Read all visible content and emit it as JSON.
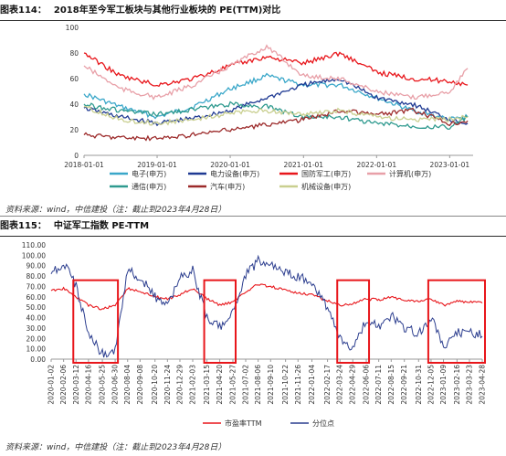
{
  "figure1": {
    "number": "图表114：",
    "title": "2018年至今军工板块与其他行业板块的 PE(TTM)对比",
    "source": "资料来源：wind，中信建投（注：截止到2023年4月28日）"
  },
  "figure2": {
    "number": "图表115：",
    "title": "中证军工指数 PE-TTM",
    "source": "资料来源：wind，中信建投（注：截止到2023年4月28日）"
  },
  "chart_data": [
    {
      "type": "line",
      "title": "2018年至今军工板块与其他行业板块的 PE(TTM)对比",
      "x_ticks": [
        "2018-01-01",
        "2019-01-01",
        "2020-01-01",
        "2021-01-01",
        "2022-01-01",
        "2023-01-01"
      ],
      "y_ticks": [
        0,
        20,
        40,
        60,
        80,
        100
      ],
      "ylim": [
        0,
        100
      ],
      "x_range": [
        "2018-01-01",
        "2023-04-28"
      ],
      "grid": false,
      "legend_position": "bottom",
      "series": [
        {
          "name": "电子(申万)",
          "color": "#3aa7c9",
          "x": [
            "2018-01",
            "2018-07",
            "2019-01",
            "2019-07",
            "2020-01",
            "2020-07",
            "2021-01",
            "2021-07",
            "2022-01",
            "2022-07",
            "2023-01",
            "2023-04"
          ],
          "values": [
            48,
            38,
            30,
            38,
            52,
            62,
            55,
            55,
            45,
            35,
            28,
            30
          ]
        },
        {
          "name": "电力设备(申万)",
          "color": "#1f3a93",
          "x": [
            "2018-01",
            "2018-07",
            "2019-01",
            "2019-07",
            "2020-01",
            "2020-07",
            "2021-01",
            "2021-07",
            "2022-01",
            "2022-07",
            "2023-01",
            "2023-04"
          ],
          "values": [
            37,
            30,
            25,
            29,
            35,
            45,
            55,
            60,
            45,
            40,
            28,
            25
          ]
        },
        {
          "name": "国防军工(申万)",
          "color": "#e8161b",
          "x": [
            "2018-01",
            "2018-07",
            "2019-01",
            "2019-07",
            "2020-01",
            "2020-07",
            "2021-01",
            "2021-07",
            "2022-01",
            "2022-07",
            "2023-01",
            "2023-04"
          ],
          "values": [
            80,
            62,
            55,
            60,
            70,
            77,
            72,
            80,
            65,
            60,
            58,
            55
          ]
        },
        {
          "name": "计算机(申万)",
          "color": "#e8a0a8",
          "x": [
            "2018-01",
            "2018-07",
            "2019-01",
            "2019-07",
            "2020-01",
            "2020-07",
            "2021-01",
            "2021-07",
            "2022-01",
            "2022-07",
            "2023-01",
            "2023-04"
          ],
          "values": [
            70,
            52,
            45,
            55,
            70,
            85,
            62,
            60,
            50,
            45,
            50,
            68
          ]
        },
        {
          "name": "通信(申万)",
          "color": "#2f9a8f",
          "x": [
            "2018-01",
            "2018-07",
            "2019-01",
            "2019-07",
            "2020-01",
            "2020-07",
            "2021-01",
            "2021-07",
            "2022-01",
            "2022-07",
            "2023-01",
            "2023-04"
          ],
          "values": [
            40,
            35,
            32,
            36,
            40,
            38,
            30,
            30,
            25,
            23,
            22,
            30
          ]
        },
        {
          "name": "汽车(申万)",
          "color": "#9c2a2a",
          "x": [
            "2018-01",
            "2018-07",
            "2019-01",
            "2019-07",
            "2020-01",
            "2020-07",
            "2021-01",
            "2021-07",
            "2022-01",
            "2022-07",
            "2023-01",
            "2023-04"
          ],
          "values": [
            16,
            14,
            13,
            16,
            20,
            24,
            28,
            35,
            32,
            35,
            25,
            27
          ]
        },
        {
          "name": "机械设备(申万)",
          "color": "#c9cf8f",
          "x": [
            "2018-01",
            "2018-07",
            "2019-01",
            "2019-07",
            "2020-01",
            "2020-07",
            "2021-01",
            "2021-07",
            "2022-01",
            "2022-07",
            "2023-01",
            "2023-04"
          ],
          "values": [
            38,
            28,
            25,
            28,
            33,
            35,
            32,
            35,
            30,
            28,
            28,
            30
          ]
        }
      ]
    },
    {
      "type": "line",
      "title": "中证军工指数 PE-TTM",
      "x_ticks": [
        "2020-01-02",
        "2020-02-06",
        "2020-03-12",
        "2020-04-16",
        "2020-05-25",
        "2020-06-30",
        "2020-08-04",
        "2020-09-08",
        "2020-10-20",
        "2020-11-24",
        "2020-12-29",
        "2021-02-03",
        "2021-03-15",
        "2021-04-20",
        "2021-05-27",
        "2021-07-02",
        "2021-08-06",
        "2021-09-10",
        "2021-10-22",
        "2021-11-26",
        "2022-01-04",
        "2022-02-17",
        "2022-03-24",
        "2022-04-29",
        "2022-06-06",
        "2022-07-11",
        "2022-08-15",
        "2022-09-21",
        "2022-10-31",
        "2022-12-05",
        "2023-01-09",
        "2023-02-16",
        "2023-03-23",
        "2023-04-28"
      ],
      "y_ticks": [
        "0.00",
        "10.00",
        "20.00",
        "30.00",
        "40.00",
        "50.00",
        "60.00",
        "70.00",
        "80.00",
        "90.00",
        "100.00",
        "110.00"
      ],
      "ylim": [
        0,
        110
      ],
      "x_range": [
        "2020-01-02",
        "2023-04-28"
      ],
      "grid": false,
      "legend_position": "bottom",
      "series": [
        {
          "name": "市盈率TTM",
          "color": "#e8161b",
          "x": [
            "2020-01-02",
            "2020-02-06",
            "2020-03-12",
            "2020-04-16",
            "2020-05-25",
            "2020-06-30",
            "2020-08-04",
            "2020-09-08",
            "2020-10-20",
            "2020-11-24",
            "2020-12-29",
            "2021-02-03",
            "2021-03-15",
            "2021-04-20",
            "2021-05-27",
            "2021-07-02",
            "2021-08-06",
            "2021-09-10",
            "2021-10-22",
            "2021-11-26",
            "2022-01-04",
            "2022-02-17",
            "2022-03-24",
            "2022-04-29",
            "2022-06-06",
            "2022-07-11",
            "2022-08-15",
            "2022-09-21",
            "2022-10-31",
            "2022-12-05",
            "2023-01-09",
            "2023-02-16",
            "2023-03-23",
            "2023-04-28"
          ],
          "values": [
            66,
            68,
            60,
            52,
            48,
            52,
            68,
            65,
            60,
            58,
            62,
            68,
            58,
            52,
            55,
            65,
            72,
            70,
            66,
            64,
            62,
            56,
            52,
            53,
            58,
            57,
            60,
            57,
            56,
            58,
            52,
            56,
            55,
            54
          ]
        },
        {
          "name": "分位点",
          "color": "#2c3e8f",
          "x": [
            "2020-01-02",
            "2020-02-06",
            "2020-03-12",
            "2020-04-16",
            "2020-05-25",
            "2020-06-30",
            "2020-08-04",
            "2020-09-08",
            "2020-10-20",
            "2020-11-24",
            "2020-12-29",
            "2021-02-03",
            "2021-03-15",
            "2021-04-20",
            "2021-05-27",
            "2021-07-02",
            "2021-08-06",
            "2021-09-10",
            "2021-10-22",
            "2021-11-26",
            "2022-01-04",
            "2022-02-17",
            "2022-03-24",
            "2022-04-29",
            "2022-06-06",
            "2022-07-11",
            "2022-08-15",
            "2022-09-21",
            "2022-10-31",
            "2022-12-05",
            "2023-01-09",
            "2023-02-16",
            "2023-03-23",
            "2023-04-28"
          ],
          "values": [
            82,
            92,
            70,
            25,
            5,
            8,
            88,
            78,
            60,
            52,
            78,
            85,
            40,
            30,
            45,
            80,
            95,
            90,
            84,
            79,
            75,
            48,
            20,
            10,
            38,
            30,
            42,
            30,
            25,
            40,
            12,
            25,
            28,
            22
          ]
        }
      ],
      "annotations": [
        {
          "type": "highlight-box",
          "x_from": "2020-03-12",
          "x_to": "2020-06-30",
          "color": "#e8161b"
        },
        {
          "type": "highlight-box",
          "x_from": "2021-03-15",
          "x_to": "2021-05-27",
          "color": "#e8161b"
        },
        {
          "type": "highlight-box",
          "x_from": "2022-03-24",
          "x_to": "2022-06-06",
          "color": "#e8161b"
        },
        {
          "type": "highlight-box",
          "x_from": "2022-12-05",
          "x_to": "2023-04-28",
          "color": "#e8161b"
        }
      ]
    }
  ]
}
